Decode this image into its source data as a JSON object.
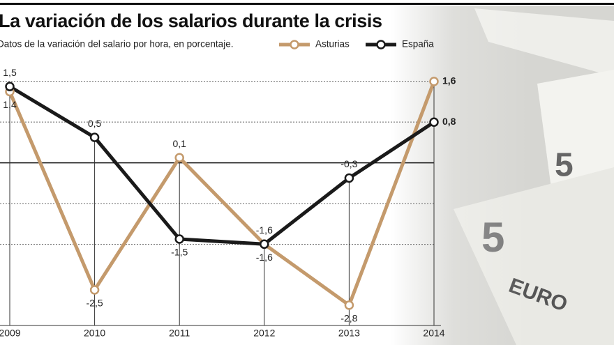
{
  "chart_data": {
    "type": "line",
    "title": "La variación de los salarios durante la crisis",
    "subtitle": "Datos de la variación del salario por hora, en porcentaje.",
    "categories": [
      "2009",
      "2010",
      "2011",
      "2012",
      "2013",
      "2014"
    ],
    "series": [
      {
        "name": "Asturias",
        "color": "#c49a6c",
        "values": [
          1.4,
          -2.5,
          0.1,
          -1.6,
          -2.8,
          1.6
        ],
        "value_labels": [
          "1,4",
          "-2,5",
          "0,1",
          "-1,6",
          "-2,8",
          "1,6"
        ]
      },
      {
        "name": "España",
        "color": "#1a1a1a",
        "values": [
          1.5,
          0.5,
          -1.5,
          -1.6,
          -0.3,
          0.8
        ],
        "value_labels": [
          "1,5",
          "0,5",
          "-1,5",
          "-1,6",
          "-0,3",
          "0,8"
        ]
      }
    ],
    "ylim": [
      -3.2,
      1.9
    ],
    "grid": true,
    "legend": "top-right"
  }
}
